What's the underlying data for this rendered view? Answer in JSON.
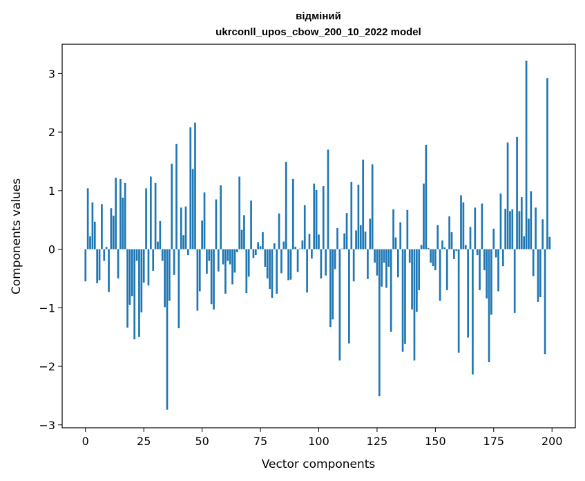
{
  "chart_data": {
    "type": "bar",
    "title": "відміний",
    "subtitle": "ukrconll_upos_cbow_200_10_2022 model",
    "xlabel": "Vector components",
    "ylabel": "Components values",
    "xlim": [
      -10,
      210
    ],
    "ylim": [
      -3.05,
      3.5
    ],
    "xticks": [
      0,
      25,
      50,
      75,
      100,
      125,
      150,
      175,
      200
    ],
    "xtick_labels": [
      "0",
      "25",
      "50",
      "75",
      "100",
      "125",
      "150",
      "175",
      "200"
    ],
    "yticks": [
      -3,
      -2,
      -1,
      0,
      1,
      2,
      3
    ],
    "ytick_labels": [
      "−3",
      "−2",
      "−1",
      "0",
      "1",
      "2",
      "3"
    ],
    "bar_color": "#1f77b4",
    "x": [
      0,
      1,
      2,
      3,
      4,
      5,
      6,
      7,
      8,
      9,
      10,
      11,
      12,
      13,
      14,
      15,
      16,
      17,
      18,
      19,
      20,
      21,
      22,
      23,
      24,
      25,
      26,
      27,
      28,
      29,
      30,
      31,
      32,
      33,
      34,
      35,
      36,
      37,
      38,
      39,
      40,
      41,
      42,
      43,
      44,
      45,
      46,
      47,
      48,
      49,
      50,
      51,
      52,
      53,
      54,
      55,
      56,
      57,
      58,
      59,
      60,
      61,
      62,
      63,
      64,
      65,
      66,
      67,
      68,
      69,
      70,
      71,
      72,
      73,
      74,
      75,
      76,
      77,
      78,
      79,
      80,
      81,
      82,
      83,
      84,
      85,
      86,
      87,
      88,
      89,
      90,
      91,
      92,
      93,
      94,
      95,
      96,
      97,
      98,
      99,
      100,
      101,
      102,
      103,
      104,
      105,
      106,
      107,
      108,
      109,
      110,
      111,
      112,
      113,
      114,
      115,
      116,
      117,
      118,
      119,
      120,
      121,
      122,
      123,
      124,
      125,
      126,
      127,
      128,
      129,
      130,
      131,
      132,
      133,
      134,
      135,
      136,
      137,
      138,
      139,
      140,
      141,
      142,
      143,
      144,
      145,
      146,
      147,
      148,
      149,
      150,
      151,
      152,
      153,
      154,
      155,
      156,
      157,
      158,
      159,
      160,
      161,
      162,
      163,
      164,
      165,
      166,
      167,
      168,
      169,
      170,
      171,
      172,
      173,
      174,
      175,
      176,
      177,
      178,
      179,
      180,
      181,
      182,
      183,
      184,
      185,
      186,
      187,
      188,
      189,
      190,
      191,
      192,
      193,
      194,
      195,
      196,
      197,
      198,
      199
    ],
    "values": [
      -0.55,
      1.04,
      0.22,
      0.8,
      0.47,
      -0.58,
      -0.53,
      0.77,
      -0.2,
      0.04,
      -0.73,
      0.7,
      0.57,
      1.22,
      -0.5,
      1.2,
      0.88,
      1.13,
      -1.34,
      -0.95,
      -0.8,
      -1.54,
      -0.2,
      -1.5,
      -1.08,
      -0.57,
      1.04,
      -0.62,
      1.24,
      -0.37,
      1.13,
      0.13,
      0.48,
      -0.2,
      -0.99,
      -2.74,
      -0.88,
      1.46,
      -0.44,
      1.8,
      -1.35,
      0.71,
      0.24,
      0.73,
      -0.1,
      2.08,
      1.37,
      2.16,
      -1.05,
      -0.72,
      0.49,
      0.97,
      -0.42,
      -0.2,
      -0.94,
      -1.03,
      0.85,
      -0.38,
      1.09,
      -0.26,
      -0.76,
      -0.2,
      -0.26,
      -0.6,
      -0.4,
      -0.05,
      1.24,
      0.33,
      0.58,
      -0.75,
      -0.47,
      0.83,
      -0.15,
      -0.1,
      0.12,
      0.05,
      0.29,
      -0.3,
      -0.5,
      -0.68,
      -0.83,
      0.1,
      -0.76,
      0.61,
      -0.41,
      0.13,
      1.49,
      -0.53,
      -0.52,
      1.2,
      0.04,
      -0.39,
      0.01,
      0.15,
      0.75,
      -0.74,
      0.26,
      -0.16,
      1.12,
      1.01,
      0.25,
      -0.5,
      1.08,
      -0.45,
      1.7,
      -1.33,
      -1.2,
      -0.34,
      0.36,
      -1.9,
      0.01,
      0.27,
      0.62,
      -1.61,
      1.15,
      -0.55,
      0.32,
      1.1,
      0.41,
      1.53,
      0.3,
      -0.51,
      0.52,
      1.45,
      -0.23,
      -0.45,
      -2.51,
      -0.64,
      -0.23,
      -0.66,
      -0.3,
      -1.41,
      0.68,
      0.2,
      -0.48,
      0.46,
      -1.75,
      -1.62,
      0.67,
      -0.23,
      -1.03,
      -1.9,
      -1.07,
      -0.7,
      0.07,
      1.12,
      1.78,
      0.02,
      -0.23,
      -0.29,
      -0.36,
      0.41,
      -0.88,
      0.15,
      0.03,
      -0.7,
      0.56,
      0.29,
      -0.17,
      -0.03,
      -1.77,
      0.92,
      0.8,
      0.07,
      -1.51,
      0.38,
      -2.14,
      0.71,
      -0.1,
      -0.7,
      0.78,
      -0.36,
      -0.84,
      -1.93,
      -1.12,
      0.35,
      -0.14,
      -0.72,
      0.95,
      -0.29,
      0.69,
      1.82,
      0.65,
      0.68,
      -1.09,
      1.92,
      0.65,
      0.89,
      0.22,
      3.22,
      0.52,
      0.99,
      -0.46,
      0.71,
      -0.9,
      -0.82,
      0.51,
      -1.79,
      2.92,
      0.21
    ]
  }
}
